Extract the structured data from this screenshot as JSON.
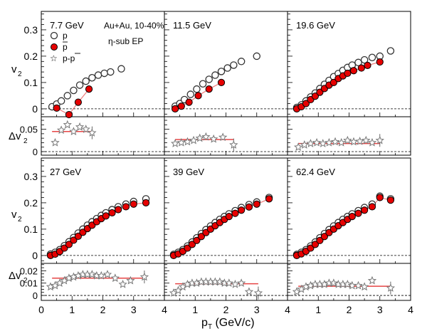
{
  "figure": {
    "system_label": "Au+Au, 10-40%",
    "method_label": "η-sub EP",
    "y_main_label": "v",
    "y_main_sub": "2",
    "y_diff_label": "Δv",
    "y_diff_sub": "2",
    "x_label_main": "p",
    "x_label_sub": "T",
    "x_label_unit": " (GeV/c)"
  },
  "legend": {
    "p": "p",
    "pbar": "p",
    "diff": "p-p"
  },
  "chart_data": [
    {
      "type": "scatter",
      "title": "7.7 GeV",
      "xlim": [
        0,
        4
      ],
      "ylim_main": [
        -0.03,
        0.37
      ],
      "ylim_diff": [
        -0.008,
        0.078
      ],
      "series": [
        {
          "name": "p",
          "x": [
            0.35,
            0.5,
            0.65,
            0.85,
            1.05,
            1.25,
            1.45,
            1.65,
            1.85,
            2.05,
            2.25,
            2.6
          ],
          "y": [
            0.008,
            0.018,
            0.03,
            0.05,
            0.07,
            0.09,
            0.105,
            0.118,
            0.128,
            0.135,
            0.14,
            0.152
          ]
        },
        {
          "name": "p̄",
          "x": [
            0.5,
            0.9,
            1.2,
            1.55
          ],
          "y": [
            0.003,
            -0.022,
            0.025,
            0.075
          ]
        },
        {
          "name": "p-p̄",
          "x": [
            0.45,
            0.65,
            0.85,
            1.05,
            1.25,
            1.45,
            1.65
          ],
          "y": [
            0.02,
            0.048,
            0.06,
            0.045,
            0.055,
            0.05,
            0.042
          ]
        }
      ],
      "fit_diff": 0.045
    },
    {
      "type": "scatter",
      "title": "11.5 GeV",
      "xlim": [
        0,
        4
      ],
      "ylim_main": [
        -0.03,
        0.37
      ],
      "ylim_diff": [
        -0.008,
        0.078
      ],
      "series": [
        {
          "name": "p",
          "x": [
            0.35,
            0.5,
            0.65,
            0.85,
            1.05,
            1.25,
            1.45,
            1.65,
            1.85,
            2.05,
            2.25,
            2.5,
            3.0
          ],
          "y": [
            0.01,
            0.02,
            0.035,
            0.055,
            0.075,
            0.095,
            0.112,
            0.128,
            0.142,
            0.155,
            0.166,
            0.18,
            0.2
          ]
        },
        {
          "name": "p̄",
          "x": [
            0.35,
            0.55,
            0.8,
            1.1,
            1.45,
            1.85
          ],
          "y": [
            0.0,
            0.01,
            0.025,
            0.05,
            0.075,
            0.1
          ]
        },
        {
          "name": "p-p̄",
          "x": [
            0.35,
            0.55,
            0.75,
            0.95,
            1.15,
            1.35,
            1.6,
            1.9,
            2.25
          ],
          "y": [
            0.018,
            0.02,
            0.022,
            0.025,
            0.03,
            0.033,
            0.028,
            0.032,
            0.015
          ]
        }
      ],
      "fit_diff": 0.027
    },
    {
      "type": "scatter",
      "title": "19.6 GeV",
      "xlim": [
        0,
        4
      ],
      "ylim_main": [
        -0.03,
        0.37
      ],
      "ylim_diff": [
        -0.008,
        0.078
      ],
      "series": [
        {
          "name": "p",
          "x": [
            0.3,
            0.45,
            0.6,
            0.75,
            0.9,
            1.05,
            1.2,
            1.35,
            1.5,
            1.65,
            1.8,
            1.95,
            2.1,
            2.3,
            2.5,
            2.75,
            3.0,
            3.35
          ],
          "y": [
            0.005,
            0.015,
            0.03,
            0.045,
            0.06,
            0.077,
            0.093,
            0.108,
            0.122,
            0.134,
            0.146,
            0.157,
            0.166,
            0.176,
            0.186,
            0.195,
            0.2,
            0.22
          ]
        },
        {
          "name": "p̄",
          "x": [
            0.3,
            0.45,
            0.6,
            0.75,
            0.9,
            1.05,
            1.2,
            1.35,
            1.5,
            1.65,
            1.8,
            1.95,
            2.15,
            2.4,
            2.6,
            3.0
          ],
          "y": [
            0.0,
            0.008,
            0.02,
            0.035,
            0.048,
            0.063,
            0.077,
            0.09,
            0.1,
            0.115,
            0.125,
            0.135,
            0.145,
            0.155,
            0.165,
            0.178
          ]
        },
        {
          "name": "p-p̄",
          "x": [
            0.35,
            0.55,
            0.75,
            0.95,
            1.15,
            1.35,
            1.55,
            1.75,
            1.95,
            2.15,
            2.35,
            2.55,
            2.75,
            3.0
          ],
          "y": [
            0.01,
            0.015,
            0.018,
            0.02,
            0.018,
            0.02,
            0.022,
            0.02,
            0.025,
            0.022,
            0.023,
            0.025,
            0.02,
            0.025
          ]
        }
      ],
      "fit_diff": 0.018
    },
    {
      "type": "scatter",
      "title": "27 GeV",
      "xlim": [
        0,
        4
      ],
      "ylim_main": [
        -0.03,
        0.37
      ],
      "ylim_diff": [
        -0.004,
        0.026
      ],
      "series": [
        {
          "name": "p",
          "x": [
            0.3,
            0.45,
            0.6,
            0.75,
            0.9,
            1.05,
            1.2,
            1.35,
            1.5,
            1.65,
            1.8,
            1.95,
            2.1,
            2.3,
            2.5,
            2.75,
            3.0,
            3.4
          ],
          "y": [
            0.005,
            0.012,
            0.022,
            0.037,
            0.052,
            0.068,
            0.085,
            0.1,
            0.115,
            0.128,
            0.14,
            0.152,
            0.162,
            0.174,
            0.185,
            0.195,
            0.205,
            0.215
          ]
        },
        {
          "name": "p̄",
          "x": [
            0.3,
            0.45,
            0.6,
            0.75,
            0.9,
            1.05,
            1.2,
            1.35,
            1.5,
            1.65,
            1.8,
            1.95,
            2.1,
            2.3,
            2.5,
            2.75,
            3.0,
            3.4
          ],
          "y": [
            0.0,
            0.005,
            0.015,
            0.028,
            0.042,
            0.058,
            0.073,
            0.088,
            0.102,
            0.115,
            0.128,
            0.14,
            0.15,
            0.162,
            0.174,
            0.185,
            0.195,
            0.2
          ]
        },
        {
          "name": "p-p̄",
          "x": [
            0.3,
            0.45,
            0.6,
            0.75,
            0.9,
            1.05,
            1.2,
            1.35,
            1.5,
            1.65,
            1.8,
            1.95,
            2.15,
            2.4,
            2.65,
            2.9,
            3.35
          ],
          "y": [
            0.007,
            0.008,
            0.01,
            0.012,
            0.014,
            0.015,
            0.016,
            0.017,
            0.017,
            0.017,
            0.016,
            0.016,
            0.017,
            0.014,
            0.009,
            0.012,
            0.015
          ]
        }
      ],
      "fit_diff": 0.014
    },
    {
      "type": "scatter",
      "title": "39 GeV",
      "xlim": [
        0,
        4
      ],
      "ylim_main": [
        -0.03,
        0.37
      ],
      "ylim_diff": [
        -0.004,
        0.026
      ],
      "series": [
        {
          "name": "p",
          "x": [
            0.3,
            0.45,
            0.6,
            0.75,
            0.9,
            1.05,
            1.2,
            1.35,
            1.5,
            1.65,
            1.8,
            1.95,
            2.1,
            2.3,
            2.5,
            2.75,
            3.0,
            3.4
          ],
          "y": [
            0.004,
            0.012,
            0.022,
            0.036,
            0.051,
            0.067,
            0.083,
            0.098,
            0.112,
            0.125,
            0.137,
            0.148,
            0.158,
            0.17,
            0.182,
            0.193,
            0.203,
            0.22
          ]
        },
        {
          "name": "p̄",
          "x": [
            0.3,
            0.45,
            0.6,
            0.75,
            0.9,
            1.05,
            1.2,
            1.35,
            1.5,
            1.65,
            1.8,
            1.95,
            2.1,
            2.3,
            2.5,
            2.75,
            3.0,
            3.4
          ],
          "y": [
            0.0,
            0.006,
            0.016,
            0.028,
            0.042,
            0.057,
            0.072,
            0.087,
            0.1,
            0.113,
            0.125,
            0.137,
            0.148,
            0.16,
            0.172,
            0.184,
            0.195,
            0.215
          ]
        },
        {
          "name": "p-p̄",
          "x": [
            0.3,
            0.45,
            0.6,
            0.75,
            0.9,
            1.05,
            1.2,
            1.35,
            1.5,
            1.65,
            1.8,
            1.95,
            2.1,
            2.3,
            2.5,
            2.75,
            3.05
          ],
          "y": [
            0.002,
            0.004,
            0.007,
            0.009,
            0.01,
            0.01,
            0.011,
            0.011,
            0.011,
            0.011,
            0.011,
            0.01,
            0.01,
            0.009,
            0.01,
            0.003,
            0.002
          ]
        }
      ],
      "fit_diff": 0.0095
    },
    {
      "type": "scatter",
      "title": "62.4 GeV",
      "xlim": [
        0,
        4
      ],
      "ylim_main": [
        -0.03,
        0.37
      ],
      "ylim_diff": [
        -0.004,
        0.026
      ],
      "series": [
        {
          "name": "p",
          "x": [
            0.3,
            0.45,
            0.6,
            0.75,
            0.9,
            1.05,
            1.2,
            1.35,
            1.5,
            1.65,
            1.8,
            1.95,
            2.1,
            2.3,
            2.5,
            2.75,
            3.0,
            3.35
          ],
          "y": [
            0.004,
            0.012,
            0.022,
            0.036,
            0.051,
            0.067,
            0.083,
            0.098,
            0.112,
            0.125,
            0.137,
            0.148,
            0.158,
            0.17,
            0.182,
            0.195,
            0.225,
            0.215
          ]
        },
        {
          "name": "p̄",
          "x": [
            0.3,
            0.45,
            0.6,
            0.75,
            0.9,
            1.05,
            1.2,
            1.35,
            1.5,
            1.65,
            1.8,
            1.95,
            2.1,
            2.3,
            2.5,
            2.75,
            3.0,
            3.35
          ],
          "y": [
            0.0,
            0.006,
            0.016,
            0.028,
            0.042,
            0.057,
            0.072,
            0.087,
            0.1,
            0.113,
            0.125,
            0.137,
            0.148,
            0.16,
            0.172,
            0.185,
            0.22,
            0.21
          ]
        },
        {
          "name": "p-p̄",
          "x": [
            0.3,
            0.45,
            0.6,
            0.75,
            0.9,
            1.05,
            1.2,
            1.35,
            1.5,
            1.65,
            1.8,
            1.95,
            2.1,
            2.3,
            2.5,
            2.75,
            3.35
          ],
          "y": [
            0.003,
            0.005,
            0.007,
            0.008,
            0.009,
            0.009,
            0.009,
            0.01,
            0.01,
            0.009,
            0.009,
            0.009,
            0.008,
            0.008,
            0.007,
            0.012,
            0.006
          ]
        }
      ],
      "fit_diff": 0.0075
    }
  ],
  "axes": {
    "x_ticks": [
      "0",
      "1",
      "2",
      "3",
      "4"
    ],
    "y_main_ticks": [
      "0",
      "0.1",
      "0.2",
      "0.3"
    ],
    "y_diff_ticks_top": [
      "0",
      "0.05"
    ],
    "y_diff_ticks_bottom": [
      "0",
      "0.01",
      "0.02"
    ]
  },
  "colors": {
    "p_stroke": "#333333",
    "pbar_fill": "#e60000",
    "diff_star": "#777777",
    "fit_line": "#e64545",
    "frame": "#000000"
  }
}
